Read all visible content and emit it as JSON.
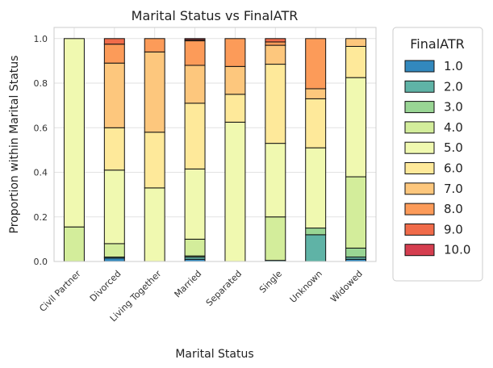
{
  "chart_data": {
    "type": "bar",
    "stacked": true,
    "title": "Marital Status vs FinalATR",
    "xlabel": "Marital Status",
    "ylabel": "Proportion within Marital Status",
    "ylim": [
      0,
      1.05
    ],
    "yticks": [
      0.0,
      0.2,
      0.4,
      0.6,
      0.8,
      1.0
    ],
    "ytick_labels": [
      "0.0",
      "0.2",
      "0.4",
      "0.6",
      "0.8",
      "1.0"
    ],
    "grid": true,
    "categories": [
      "Civil Partner",
      "Divorced",
      "Living Together",
      "Married",
      "Separated",
      "Single",
      "Unknown",
      "Widowed"
    ],
    "legend": {
      "title": "FinalATR",
      "placement": "outside-right"
    },
    "series": [
      {
        "name": "1.0",
        "color": "#3288bd",
        "values": [
          0.0,
          0.015,
          0.0,
          0.01,
          0.0,
          0.0,
          0.0,
          0.01
        ]
      },
      {
        "name": "2.0",
        "color": "#5fb3a6",
        "values": [
          0.0,
          0.005,
          0.0,
          0.01,
          0.0,
          0.005,
          0.12,
          0.01
        ]
      },
      {
        "name": "3.0",
        "color": "#99d594",
        "values": [
          0.0,
          0.0,
          0.0,
          0.005,
          0.0,
          0.0,
          0.03,
          0.04
        ]
      },
      {
        "name": "4.0",
        "color": "#d3ed9b",
        "values": [
          0.155,
          0.06,
          0.0,
          0.075,
          0.0,
          0.195,
          0.0,
          0.32
        ]
      },
      {
        "name": "5.0",
        "color": "#f0f9b0",
        "values": [
          0.845,
          0.33,
          0.33,
          0.315,
          0.625,
          0.33,
          0.36,
          0.445
        ]
      },
      {
        "name": "6.0",
        "color": "#fee99a",
        "values": [
          0.0,
          0.19,
          0.25,
          0.295,
          0.125,
          0.355,
          0.22,
          0.14
        ]
      },
      {
        "name": "7.0",
        "color": "#fdc77d",
        "values": [
          0.0,
          0.29,
          0.36,
          0.17,
          0.125,
          0.085,
          0.045,
          0.035
        ]
      },
      {
        "name": "8.0",
        "color": "#fc9b59",
        "values": [
          0.0,
          0.085,
          0.06,
          0.11,
          0.125,
          0.015,
          0.225,
          0.0
        ]
      },
      {
        "name": "9.0",
        "color": "#f06b4a",
        "values": [
          0.0,
          0.025,
          0.0,
          0.005,
          0.0,
          0.015,
          0.0,
          0.0
        ]
      },
      {
        "name": "10.0",
        "color": "#d53e4f",
        "values": [
          0.0,
          0.0,
          0.0,
          0.005,
          0.0,
          0.0,
          0.0,
          0.0
        ]
      }
    ]
  }
}
